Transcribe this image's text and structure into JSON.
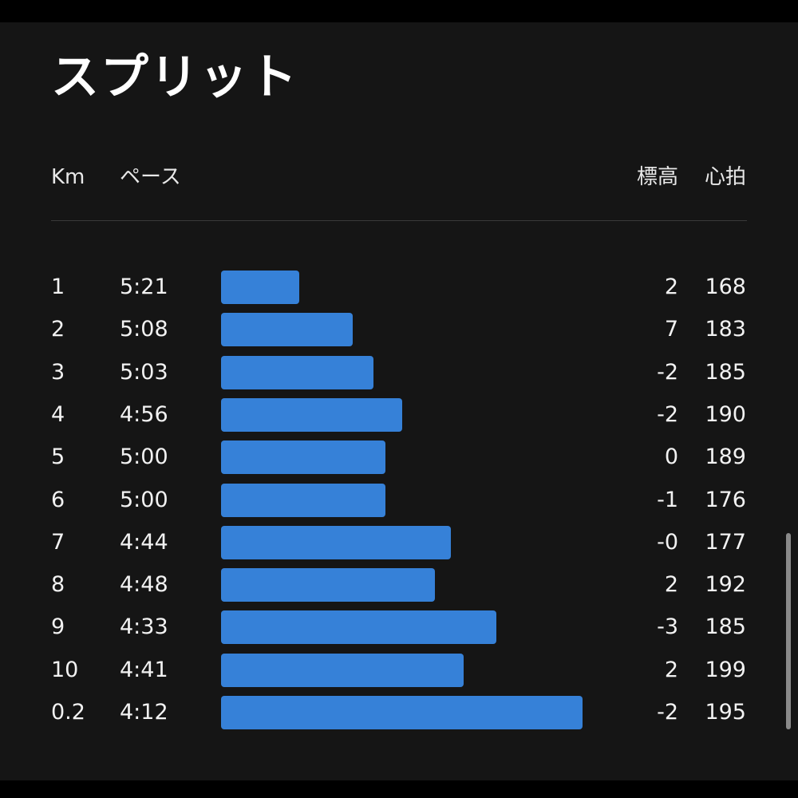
{
  "title": "スプリット",
  "header": {
    "km": "Km",
    "pace": "ペース",
    "elevation": "標高",
    "heart_rate": "心拍"
  },
  "colors": {
    "bar": "#3681d8",
    "background": "#151515",
    "text": "#f2f2f2"
  },
  "splits": [
    {
      "km": "1",
      "pace": "5:21",
      "elevation": "2",
      "heart_rate": "168",
      "pace_seconds": 321
    },
    {
      "km": "2",
      "pace": "5:08",
      "elevation": "7",
      "heart_rate": "183",
      "pace_seconds": 308
    },
    {
      "km": "3",
      "pace": "5:03",
      "elevation": "-2",
      "heart_rate": "185",
      "pace_seconds": 303
    },
    {
      "km": "4",
      "pace": "4:56",
      "elevation": "-2",
      "heart_rate": "190",
      "pace_seconds": 296
    },
    {
      "km": "5",
      "pace": "5:00",
      "elevation": "0",
      "heart_rate": "189",
      "pace_seconds": 300
    },
    {
      "km": "6",
      "pace": "5:00",
      "elevation": "-1",
      "heart_rate": "176",
      "pace_seconds": 300
    },
    {
      "km": "7",
      "pace": "4:44",
      "elevation": "-0",
      "heart_rate": "177",
      "pace_seconds": 284
    },
    {
      "km": "8",
      "pace": "4:48",
      "elevation": "2",
      "heart_rate": "192",
      "pace_seconds": 288
    },
    {
      "km": "9",
      "pace": "4:33",
      "elevation": "-3",
      "heart_rate": "185",
      "pace_seconds": 273
    },
    {
      "km": "10",
      "pace": "4:41",
      "elevation": "2",
      "heart_rate": "199",
      "pace_seconds": 281
    },
    {
      "km": "0.2",
      "pace": "4:12",
      "elevation": "-2",
      "heart_rate": "195",
      "pace_seconds": 252
    }
  ]
}
